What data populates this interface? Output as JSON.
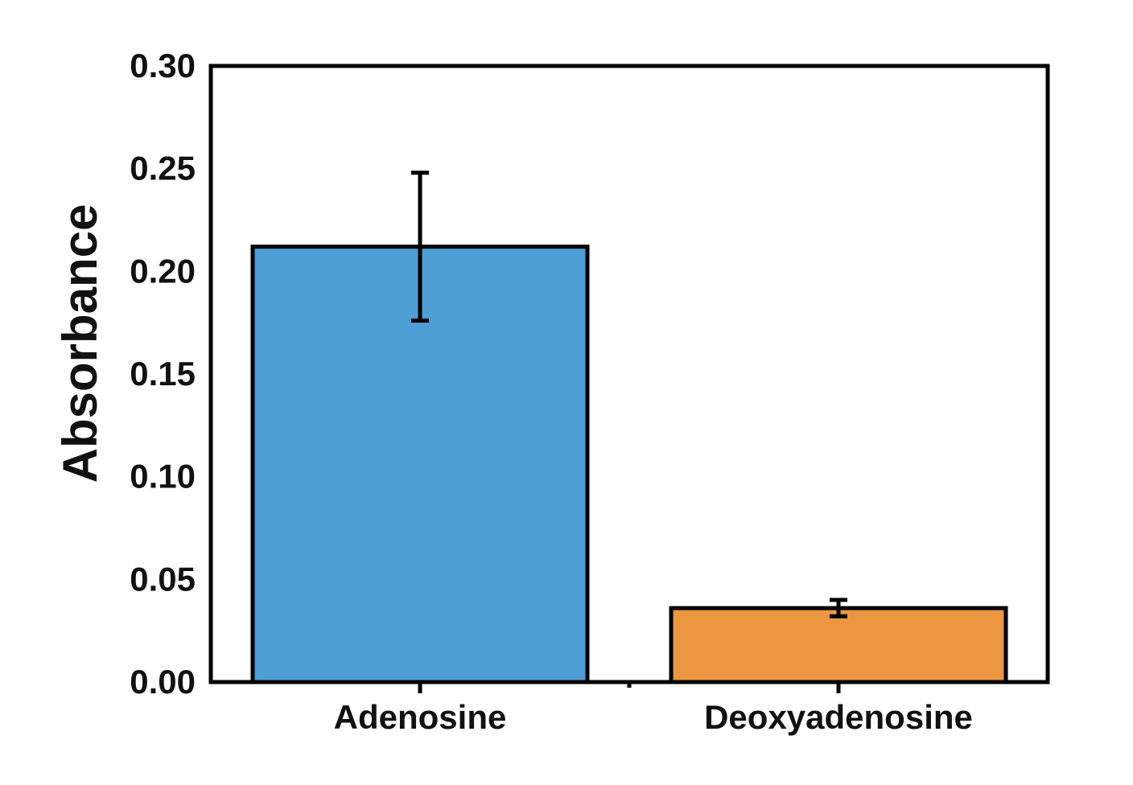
{
  "chart_data": {
    "type": "bar",
    "title": "",
    "xlabel": "",
    "ylabel": "Absorbance",
    "ylim": [
      0,
      0.3
    ],
    "yticks": [
      0.0,
      0.05,
      0.1,
      0.15,
      0.2,
      0.25,
      0.3
    ],
    "ytick_labels": [
      "0.00",
      "0.05",
      "0.10",
      "0.15",
      "0.20",
      "0.25",
      "0.30"
    ],
    "categories": [
      "Adenosine",
      "Deoxyadenosine"
    ],
    "values": [
      0.212,
      0.036
    ],
    "errors": [
      0.036,
      0.004
    ],
    "colors": [
      "#4e9ed6",
      "#ec9740"
    ],
    "grid": false,
    "legend": "none"
  }
}
